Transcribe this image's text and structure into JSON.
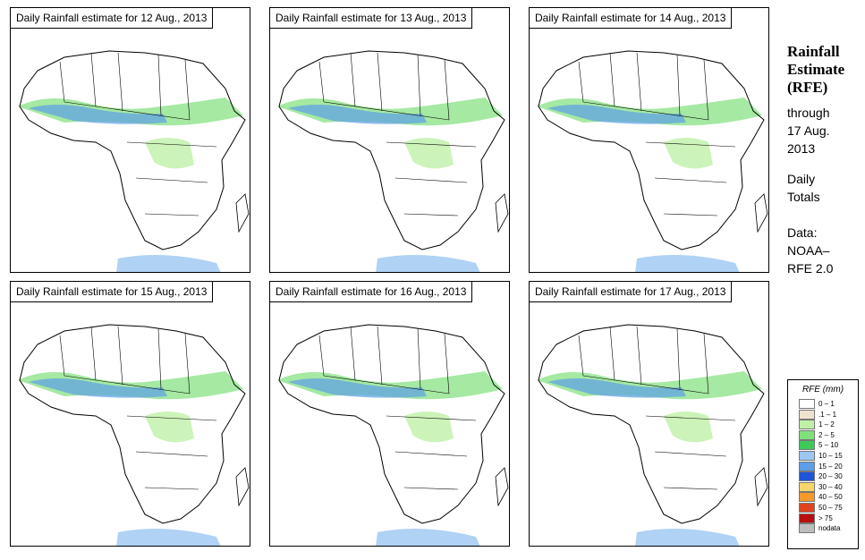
{
  "title_prefix": "Daily Rainfall estimate for",
  "panels": [
    {
      "date": "12 Aug., 2013",
      "label": "Daily Rainfall estimate for  12 Aug., 2013"
    },
    {
      "date": "13 Aug., 2013",
      "label": "Daily Rainfall estimate for  13 Aug., 2013"
    },
    {
      "date": "14 Aug., 2013",
      "label": "Daily Rainfall estimate for  14 Aug., 2013"
    },
    {
      "date": "15 Aug., 2013",
      "label": "Daily Rainfall estimate for  15 Aug., 2013"
    },
    {
      "date": "16 Aug., 2013",
      "label": "Daily Rainfall estimate for  16 Aug., 2013"
    },
    {
      "date": "17 Aug., 2013",
      "label": "Daily Rainfall estimate for  17 Aug., 2013"
    }
  ],
  "side": {
    "heading_line1": "Rainfall",
    "heading_line2": "Estimate",
    "heading_line3": "(RFE)",
    "through": "through",
    "through_date_line1": "17 Aug.",
    "through_date_line2": "2013",
    "period_line1": "Daily",
    "period_line2": "Totals",
    "data_label": "Data:",
    "data_source_line1": "NOAA–",
    "data_source_line2": "RFE 2.0"
  },
  "legend": {
    "title": "RFE (mm)",
    "items": [
      {
        "label": "0 – 1",
        "color": "#ffffff"
      },
      {
        "label": ".1 – 1",
        "color": "#efe3cf"
      },
      {
        "label": "1 – 2",
        "color": "#bff0a8"
      },
      {
        "label": "2 – 5",
        "color": "#7fe07a"
      },
      {
        "label": "5 – 10",
        "color": "#3dc95a"
      },
      {
        "label": "10 – 15",
        "color": "#9bc7f2"
      },
      {
        "label": "15 – 20",
        "color": "#5c9ee8"
      },
      {
        "label": "20 – 30",
        "color": "#1f55d6"
      },
      {
        "label": "30 – 40",
        "color": "#f6d66a"
      },
      {
        "label": "40 – 50",
        "color": "#f39a2b"
      },
      {
        "label": "50 – 75",
        "color": "#e0441f"
      },
      {
        "label": "> 75",
        "color": "#b81010"
      },
      {
        "label": "nodata",
        "color": "#bdbdbd"
      }
    ]
  }
}
